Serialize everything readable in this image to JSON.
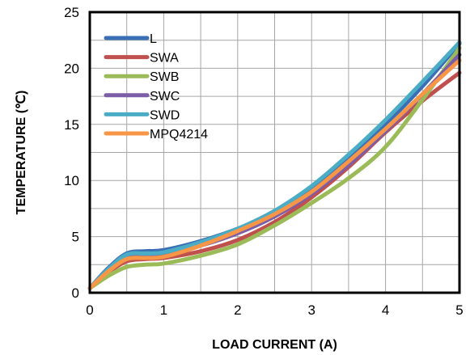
{
  "chart_data": {
    "type": "line",
    "xlabel": "LOAD CURRENT  (A)",
    "ylabel": "TEMPERATURE  (℃)",
    "xlim": [
      0,
      5
    ],
    "ylim": [
      0,
      25
    ],
    "xticks": [
      "0",
      "1",
      "2",
      "3",
      "4",
      "5"
    ],
    "yticks": [
      "0",
      "5",
      "10",
      "15",
      "20",
      "25"
    ],
    "grid": true,
    "legend_position": "top-left",
    "series": [
      {
        "name": "L",
        "color": "#3a6fb5",
        "x": [
          0,
          0.25,
          0.5,
          0.75,
          1,
          1.5,
          2,
          2.5,
          3,
          3.5,
          4,
          4.5,
          5
        ],
        "y": [
          0.4,
          2.2,
          3.5,
          3.7,
          3.8,
          4.6,
          5.7,
          7.2,
          9.3,
          12.0,
          15.0,
          18.4,
          22.2
        ]
      },
      {
        "name": "SWA",
        "color": "#c0504d",
        "x": [
          0,
          0.25,
          0.5,
          0.75,
          1,
          1.5,
          2,
          2.5,
          3,
          3.5,
          4,
          4.5,
          5
        ],
        "y": [
          0.4,
          1.8,
          2.8,
          3.0,
          3.1,
          3.7,
          4.7,
          6.3,
          8.5,
          11.2,
          14.3,
          17.1,
          19.6
        ]
      },
      {
        "name": "SWB",
        "color": "#9bbb59",
        "x": [
          0,
          0.25,
          0.5,
          0.75,
          1,
          1.5,
          2,
          2.5,
          3,
          3.5,
          4,
          4.5,
          5
        ],
        "y": [
          0.4,
          1.5,
          2.3,
          2.5,
          2.6,
          3.3,
          4.3,
          6.0,
          8.0,
          10.2,
          13.0,
          17.2,
          21.8
        ]
      },
      {
        "name": "SWC",
        "color": "#7b5ea7",
        "x": [
          0,
          0.25,
          0.5,
          0.75,
          1,
          1.5,
          2,
          2.5,
          3,
          3.5,
          4,
          4.5,
          5
        ],
        "y": [
          0.4,
          2.0,
          3.2,
          3.3,
          3.4,
          4.2,
          5.3,
          6.8,
          8.8,
          11.4,
          14.4,
          17.7,
          21.2
        ]
      },
      {
        "name": "SWD",
        "color": "#4bacc6",
        "x": [
          0,
          0.25,
          0.5,
          0.75,
          1,
          1.5,
          2,
          2.5,
          3,
          3.5,
          4,
          4.5,
          5
        ],
        "y": [
          0.4,
          2.1,
          3.4,
          3.5,
          3.6,
          4.5,
          5.7,
          7.3,
          9.5,
          12.3,
          15.4,
          18.8,
          22.3
        ]
      },
      {
        "name": "MPQ4214",
        "color": "#f79646",
        "x": [
          0,
          0.25,
          0.5,
          0.75,
          1,
          1.5,
          2,
          2.5,
          3,
          3.5,
          4,
          4.5,
          5
        ],
        "y": [
          0.4,
          1.9,
          3.0,
          3.1,
          3.2,
          4.2,
          5.5,
          7.0,
          9.0,
          11.7,
          14.6,
          17.7,
          20.7
        ]
      }
    ]
  }
}
